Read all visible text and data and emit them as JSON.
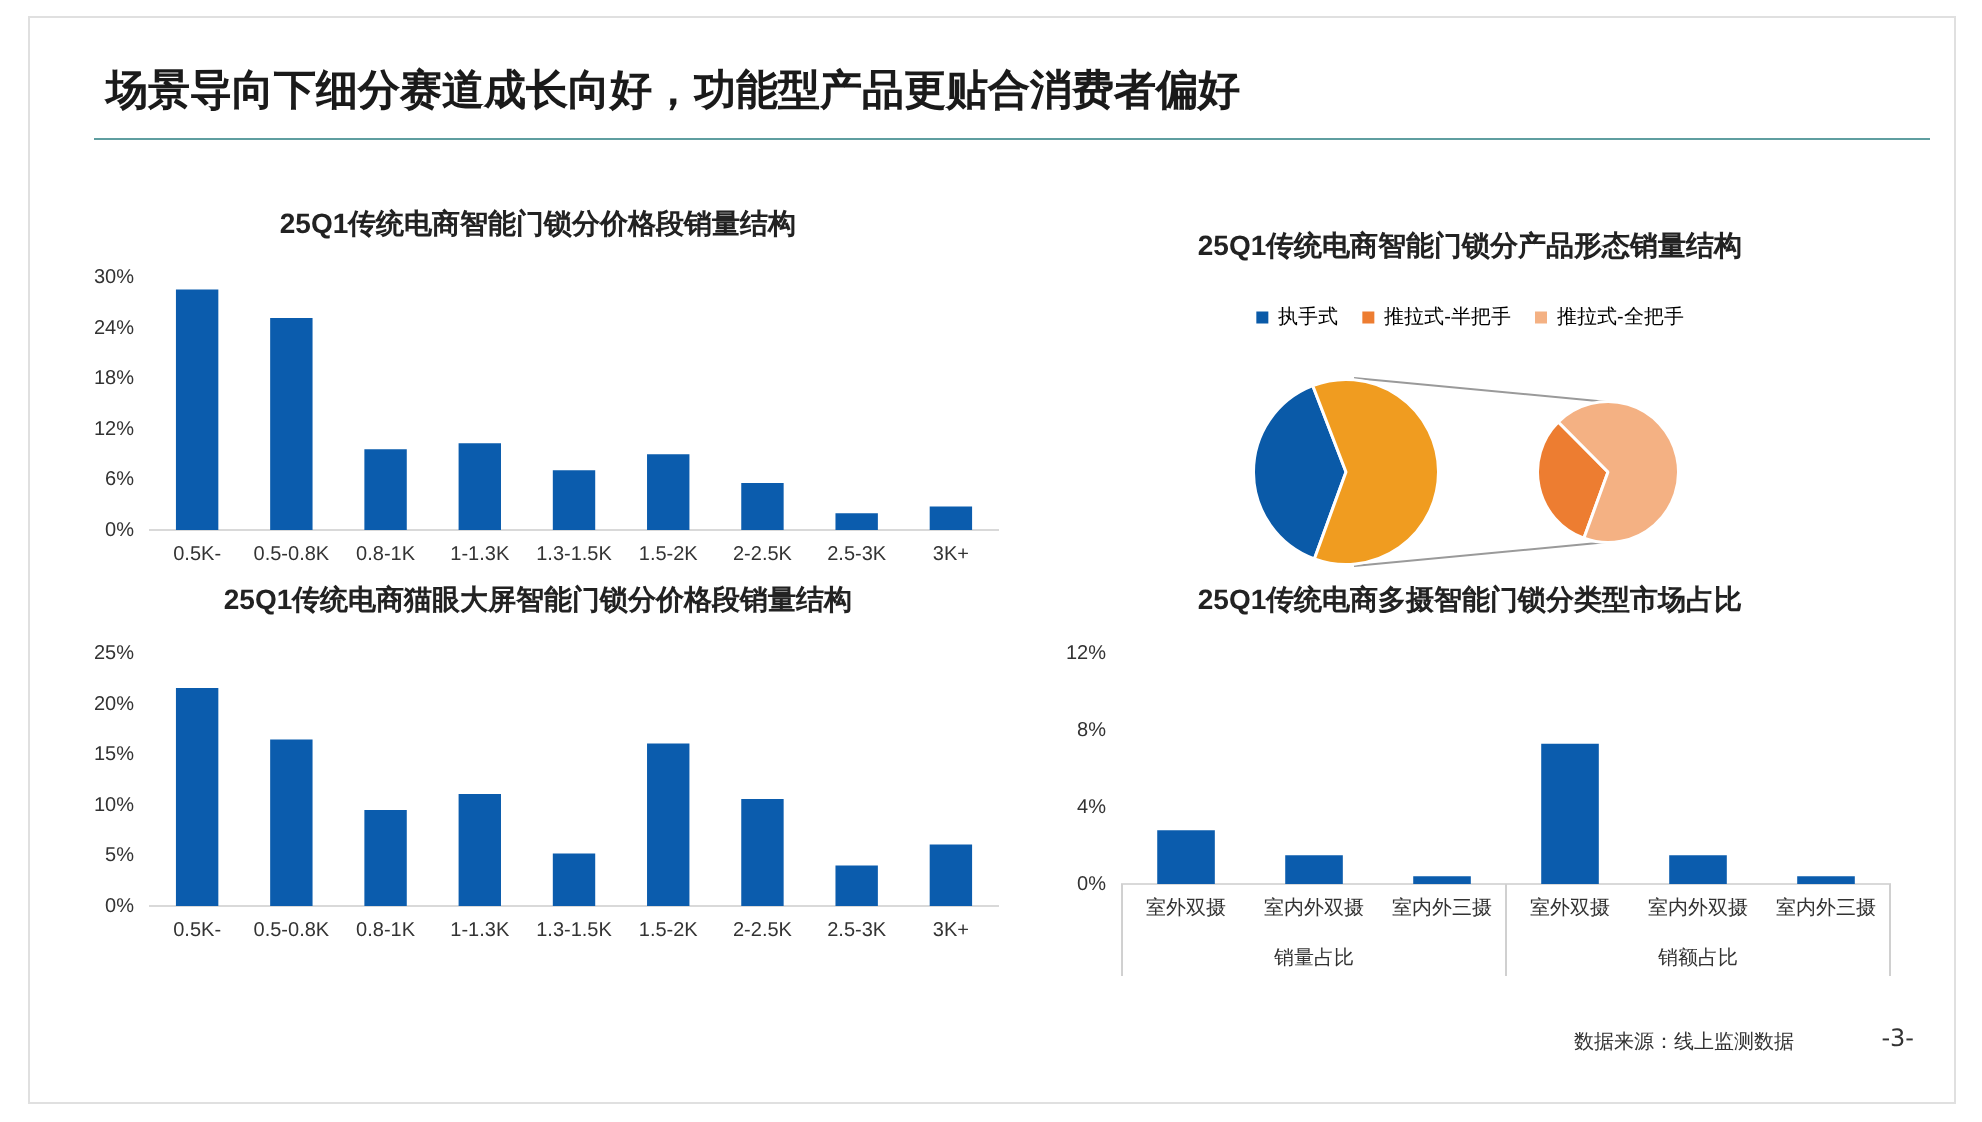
{
  "chart_data": [
    {
      "type": "other",
      "title": "场景导向下细分赛道成长向好，功能型产品更贴合消费者偏好",
      "annotations": [
        "数据来源：线上监测数据",
        "-3-"
      ]
    },
    {
      "type": "bar",
      "title": "25Q1传统电商智能门锁分价格段销量结构",
      "categories": [
        "0.5K-",
        "0.5-0.8K",
        "0.8-1K",
        "1-1.3K",
        "1.3-1.5K",
        "1.5-2K",
        "2-2.5K",
        "2.5-3K",
        "3K+"
      ],
      "values": [
        28.6,
        25.2,
        9.6,
        10.3,
        7.1,
        9.0,
        5.6,
        2.0,
        2.8
      ],
      "color": "#0b5cad",
      "ylim": [
        0,
        30
      ],
      "yticks": [
        {
          "value": 0,
          "label": "0%"
        },
        {
          "value": 6,
          "label": "6%"
        },
        {
          "value": 12,
          "label": "12%"
        },
        {
          "value": 18,
          "label": "18%"
        },
        {
          "value": 24,
          "label": "24%"
        },
        {
          "value": 30,
          "label": "30%"
        }
      ],
      "grid": false,
      "legend": false
    },
    {
      "type": "bar",
      "title": "25Q1传统电商猫眼大屏智能门锁分价格段销量结构",
      "categories": [
        "0.5K-",
        "0.5-0.8K",
        "0.8-1K",
        "1-1.3K",
        "1.3-1.5K",
        "1.5-2K",
        "2-2.5K",
        "2.5-3K",
        "3K+"
      ],
      "values": [
        21.6,
        16.5,
        9.5,
        11.1,
        5.2,
        16.1,
        10.6,
        4.0,
        6.1
      ],
      "color": "#0b5cad",
      "ylim": [
        0,
        25
      ],
      "yticks": [
        {
          "value": 0,
          "label": "0%"
        },
        {
          "value": 5,
          "label": "5%"
        },
        {
          "value": 10,
          "label": "10%"
        },
        {
          "value": 15,
          "label": "15%"
        },
        {
          "value": 20,
          "label": "20%"
        },
        {
          "value": 25,
          "label": "25%"
        }
      ],
      "grid": false,
      "legend": false
    },
    {
      "type": "pie",
      "title": "25Q1传统电商智能门锁分产品形态销量结构",
      "legend": "top",
      "categories": [
        "执手式",
        null,
        "推拉式-半把手",
        "推拉式-全把手"
      ],
      "series": [
        {
          "values": [
            38.6,
            61.4,
            null,
            null
          ],
          "colors": [
            "#0a5aa8",
            "#f09c20",
            null,
            null
          ]
        },
        {
          "values": [
            null,
            null,
            32,
            68
          ],
          "colors": [
            null,
            null,
            "#ed7d31",
            "#f4b183"
          ]
        }
      ]
    },
    {
      "type": "bar",
      "title": "25Q1传统电商多摄智能门锁分类型市场占比",
      "categories": [
        "室外双摄",
        "室内外双摄",
        "室内外三摄",
        "室外双摄",
        "室内外双摄",
        "室内外三摄"
      ],
      "values": [
        2.8,
        1.5,
        0.4,
        7.3,
        1.5,
        0.4
      ],
      "color": "#0b5cad",
      "ylim": [
        0,
        12
      ],
      "yticks": [
        {
          "value": 0,
          "label": "0%"
        },
        {
          "value": 4,
          "label": "4%"
        },
        {
          "value": 8,
          "label": "8%"
        },
        {
          "value": 12,
          "label": "12%"
        }
      ],
      "grid": false,
      "legend": false,
      "annotations": [
        "销量占比",
        "销额占比"
      ]
    }
  ]
}
